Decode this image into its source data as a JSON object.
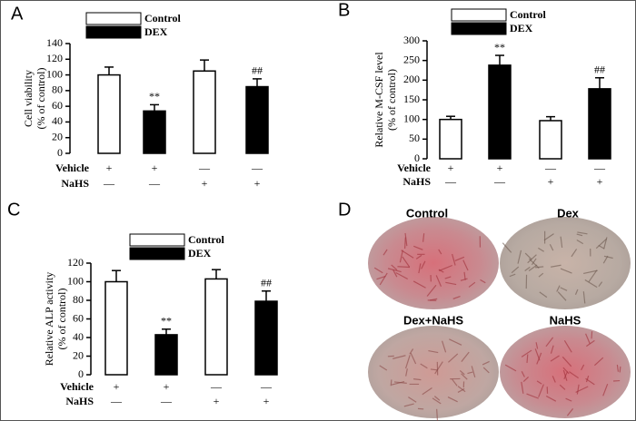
{
  "chart_data": [
    {
      "type": "bar",
      "panel_label": "A",
      "y_label": [
        "Cell viability",
        "(% of control)"
      ],
      "categories": [
        null,
        null,
        null,
        null
      ],
      "series": [
        {
          "name": "Control",
          "color": "#ffffff",
          "values": [
            100,
            null,
            105,
            null
          ],
          "errors": [
            10,
            null,
            14,
            null
          ]
        },
        {
          "name": "DEX",
          "color": "#000000",
          "values": [
            null,
            54,
            null,
            85
          ],
          "errors": [
            null,
            8,
            null,
            10
          ]
        }
      ],
      "annotations": [
        null,
        "**",
        null,
        "##"
      ],
      "treatments": [
        {
          "name": "Vehicle",
          "marks": [
            "+",
            "+",
            "—",
            "—"
          ]
        },
        {
          "name": "NaHS",
          "marks": [
            "—",
            "—",
            "+",
            "+"
          ]
        }
      ],
      "ylim": [
        0,
        140
      ],
      "yticks": [
        0,
        20,
        40,
        60,
        80,
        100,
        120,
        140
      ]
    },
    {
      "type": "bar",
      "panel_label": "B",
      "y_label": [
        "Relative M-CSF level",
        "(% of control)"
      ],
      "categories": [
        null,
        null,
        null,
        null
      ],
      "series": [
        {
          "name": "Control",
          "color": "#ffffff",
          "values": [
            100,
            null,
            97,
            null
          ],
          "errors": [
            8,
            null,
            10,
            null
          ]
        },
        {
          "name": "DEX",
          "color": "#000000",
          "values": [
            null,
            238,
            null,
            178
          ],
          "errors": [
            null,
            25,
            null,
            28
          ]
        }
      ],
      "annotations": [
        null,
        "**",
        null,
        "##"
      ],
      "treatments": [
        {
          "name": "Vehicle",
          "marks": [
            "+",
            "+",
            "—",
            "—"
          ]
        },
        {
          "name": "NaHS",
          "marks": [
            "—",
            "—",
            "+",
            "+"
          ]
        }
      ],
      "ylim": [
        0,
        300
      ],
      "yticks": [
        0,
        50,
        100,
        150,
        200,
        250,
        300
      ]
    },
    {
      "type": "bar",
      "panel_label": "C",
      "y_label": [
        "Relative ALP activity",
        "(% of control)"
      ],
      "categories": [
        null,
        null,
        null,
        null
      ],
      "series": [
        {
          "name": "Control",
          "color": "#ffffff",
          "values": [
            100,
            null,
            103,
            null
          ],
          "errors": [
            12,
            null,
            10,
            null
          ]
        },
        {
          "name": "DEX",
          "color": "#000000",
          "values": [
            null,
            43,
            null,
            79
          ],
          "errors": [
            null,
            6,
            null,
            11
          ]
        }
      ],
      "annotations": [
        null,
        "**",
        null,
        "##"
      ],
      "treatments": [
        {
          "name": "Vehicle",
          "marks": [
            "+",
            "+",
            "—",
            "—"
          ]
        },
        {
          "name": "NaHS",
          "marks": [
            "—",
            "—",
            "+",
            "+"
          ]
        }
      ],
      "ylim": [
        0,
        120
      ],
      "yticks": [
        0,
        20,
        40,
        60,
        80,
        100,
        120
      ]
    }
  ],
  "image_panel": {
    "panel_label": "D",
    "captions": [
      "Control",
      "Dex",
      "Dex+NaHS",
      "NaHS"
    ]
  }
}
